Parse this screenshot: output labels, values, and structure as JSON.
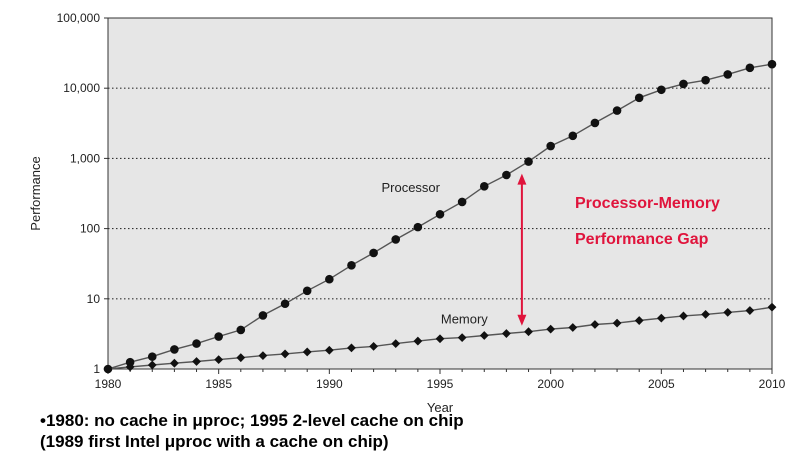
{
  "chart_data": {
    "type": "line",
    "xlabel": "Year",
    "ylabel": "Performance",
    "y_scale": "log",
    "xlim": [
      1980,
      2010
    ],
    "ylim": [
      1,
      100000
    ],
    "x_ticks": [
      "1980",
      "1985",
      "1990",
      "1995",
      "2000",
      "2005",
      "2010"
    ],
    "y_ticks": [
      "1",
      "10",
      "100",
      "1,000",
      "10,000",
      "100,000"
    ],
    "grid": "horizontal dotted",
    "plot_background": "#e6e6e6",
    "series": [
      {
        "name": "Processor",
        "marker": "circle",
        "x": [
          1980,
          1981,
          1982,
          1983,
          1984,
          1985,
          1986,
          1987,
          1988,
          1989,
          1990,
          1991,
          1992,
          1993,
          1994,
          1995,
          1996,
          1997,
          1998,
          1999,
          2000,
          2001,
          2002,
          2003,
          2004,
          2005,
          2006,
          2007,
          2008,
          2009,
          2010
        ],
        "values": [
          1,
          1.25,
          1.5,
          1.9,
          2.3,
          2.9,
          3.6,
          5.8,
          8.5,
          13,
          19,
          30,
          45,
          70,
          105,
          160,
          240,
          400,
          580,
          900,
          1500,
          2100,
          3200,
          4800,
          7300,
          9500,
          11500,
          13000,
          15700,
          19500,
          22000
        ]
      },
      {
        "name": "Memory",
        "marker": "diamond",
        "x": [
          1980,
          1981,
          1982,
          1983,
          1984,
          1985,
          1986,
          1987,
          1988,
          1989,
          1990,
          1991,
          1992,
          1993,
          1994,
          1995,
          1996,
          1997,
          1998,
          1999,
          2000,
          2001,
          2002,
          2003,
          2004,
          2005,
          2006,
          2007,
          2008,
          2009,
          2010
        ],
        "values": [
          1,
          1.07,
          1.14,
          1.21,
          1.28,
          1.36,
          1.45,
          1.55,
          1.64,
          1.75,
          1.85,
          2.0,
          2.1,
          2.3,
          2.5,
          2.7,
          2.8,
          3.0,
          3.2,
          3.4,
          3.7,
          3.9,
          4.3,
          4.5,
          4.9,
          5.3,
          5.7,
          6.0,
          6.4,
          6.8,
          7.6
        ]
      }
    ],
    "annotations": [
      {
        "text": "Processor-Memory",
        "color": "#e0143c"
      },
      {
        "text": "Performance Gap",
        "color": "#e0143c"
      }
    ],
    "gap_arrow": {
      "x": 1998.7,
      "from": 3.4,
      "to": 900,
      "color": "#e0143c"
    }
  },
  "captions": {
    "line1": "•1980: no cache in μproc; 1995 2-level cache on chip",
    "line2": "(1989 first Intel μproc with a cache on chip)"
  }
}
